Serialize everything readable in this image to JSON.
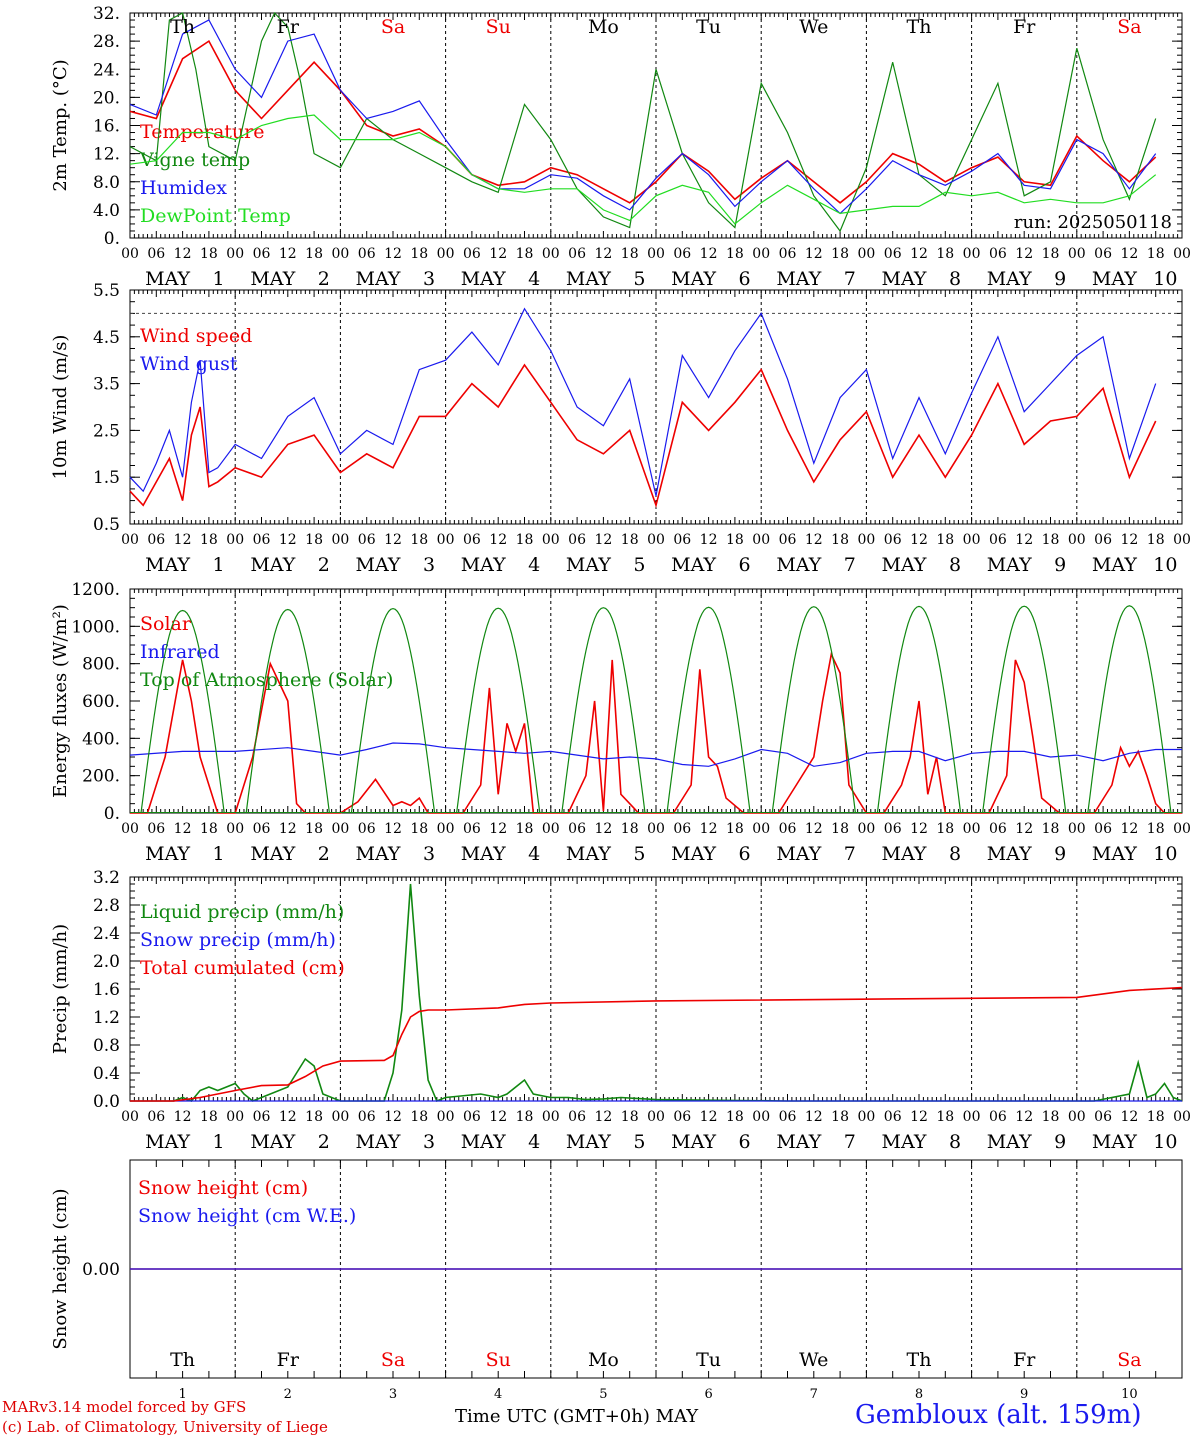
{
  "days": {
    "dates": [
      "1",
      "2",
      "3",
      "4",
      "5",
      "6",
      "7",
      "8",
      "9",
      "10"
    ],
    "month": "MAY",
    "weekdays": [
      "Th",
      "Fr",
      "Sa",
      "Su",
      "Mo",
      "Tu",
      "We",
      "Th",
      "Fr",
      "Sa"
    ],
    "weekend_flags": [
      false,
      false,
      true,
      true,
      false,
      false,
      false,
      false,
      false,
      true
    ],
    "hour_ticks": [
      "00",
      "06",
      "12",
      "18"
    ]
  },
  "colors": {
    "red": "#ee0000",
    "green": "#118811",
    "blue": "#1a1aee",
    "lightgreen": "#22dd22",
    "weekend": "#ee1111"
  },
  "footer": {
    "model": "MARv3.14 model forced by GFS",
    "credit": "(c) Lab. of Climatology, University of Liege",
    "time_label": "Time UTC (GMT+0h)",
    "time_month": "MAY",
    "station": "Gembloux (alt. 159m)"
  },
  "chart_data": [
    {
      "type": "line",
      "ylabel": "2m Temp. (°C)",
      "ylim": [
        0,
        32
      ],
      "yticks": [
        "0.",
        "4.0",
        "8.0",
        "12.",
        "16.",
        "20.",
        "24.",
        "28.",
        "32."
      ],
      "annotation": "run: 2025050118",
      "x_unit": "hours since 00 UTC MAY 1",
      "series": [
        {
          "name": "Temperature",
          "color": "red",
          "x": [
            0,
            6,
            12,
            18,
            24,
            30,
            36,
            42,
            48,
            54,
            60,
            66,
            72,
            78,
            84,
            90,
            96,
            102,
            108,
            114,
            120,
            126,
            132,
            138,
            144,
            150,
            156,
            162,
            168,
            174,
            180,
            186,
            192,
            198,
            204,
            210,
            216,
            222,
            228,
            234
          ],
          "values": [
            18,
            17,
            25.5,
            28,
            21,
            17,
            21,
            25,
            21,
            16,
            14.5,
            15.5,
            13,
            9,
            7.5,
            8,
            10,
            9,
            7,
            5,
            8,
            12,
            9.5,
            5.5,
            8.5,
            11,
            8,
            5,
            8,
            12,
            10.5,
            8,
            10,
            11.5,
            8,
            7.5,
            14.5,
            11,
            8,
            11.5
          ]
        },
        {
          "name": "Vigne temp",
          "color": "green",
          "x": [
            0,
            6,
            9,
            12,
            15,
            18,
            24,
            30,
            33,
            36,
            39,
            42,
            48,
            54,
            60,
            66,
            72,
            78,
            84,
            90,
            96,
            102,
            108,
            114,
            120,
            126,
            132,
            138,
            144,
            150,
            156,
            162,
            168,
            174,
            180,
            186,
            192,
            198,
            204,
            210,
            216,
            222,
            228,
            234
          ],
          "values": [
            13,
            11,
            31,
            32,
            24,
            13,
            11,
            28,
            32,
            30,
            22,
            12,
            10,
            17,
            14,
            12,
            10,
            8,
            6.5,
            19,
            14,
            7,
            3,
            1.5,
            24,
            12,
            5,
            1.5,
            22,
            15,
            6,
            1,
            10,
            25,
            9,
            6,
            14,
            22,
            6,
            8,
            27,
            14,
            5.5,
            17
          ]
        },
        {
          "name": "Humidex",
          "color": "blue",
          "x": [
            0,
            6,
            12,
            18,
            24,
            30,
            36,
            42,
            48,
            54,
            60,
            66,
            72,
            78,
            84,
            90,
            96,
            102,
            108,
            114,
            120,
            126,
            132,
            138,
            144,
            150,
            156,
            162,
            168,
            174,
            180,
            186,
            192,
            198,
            204,
            210,
            216,
            222,
            228,
            234
          ],
          "values": [
            19,
            17.5,
            29,
            31,
            24,
            20,
            28,
            29,
            21,
            17,
            18,
            19.5,
            14,
            9,
            7,
            7,
            9,
            8.5,
            6,
            4,
            8.5,
            12,
            9,
            4.5,
            8,
            11,
            7,
            3.5,
            7,
            11,
            9,
            7.5,
            9.5,
            12,
            7.5,
            7,
            14,
            12,
            7,
            12
          ]
        },
        {
          "name": "DewPoint Temp",
          "color": "lightgreen",
          "x": [
            0,
            6,
            12,
            18,
            24,
            30,
            36,
            42,
            48,
            54,
            60,
            66,
            72,
            78,
            84,
            90,
            96,
            102,
            108,
            114,
            120,
            126,
            132,
            138,
            144,
            150,
            156,
            162,
            168,
            174,
            180,
            186,
            192,
            198,
            204,
            210,
            216,
            222,
            228,
            234
          ],
          "values": [
            10.5,
            11,
            15,
            15,
            14,
            16,
            17,
            17.5,
            14,
            14,
            14,
            15,
            13,
            9,
            7,
            6.5,
            7,
            7,
            4,
            2.5,
            6,
            7.5,
            6.5,
            2,
            5,
            7.5,
            5.5,
            3.5,
            4,
            4.5,
            4.5,
            6.5,
            6,
            6.5,
            5,
            5.5,
            5,
            5,
            6,
            9
          ]
        }
      ]
    },
    {
      "type": "line",
      "ylabel": "10m Wind (m/s)",
      "ylim": [
        0.5,
        5.5
      ],
      "yticks": [
        "0.5",
        "1.5",
        "2.5",
        "3.5",
        "4.5",
        "5.5"
      ],
      "reference_line": 5.0,
      "x_unit": "hours since 00 UTC MAY 1",
      "series": [
        {
          "name": "Wind speed",
          "color": "red",
          "x": [
            0,
            3,
            6,
            9,
            12,
            14,
            16,
            18,
            20,
            24,
            30,
            36,
            42,
            48,
            54,
            60,
            66,
            72,
            78,
            84,
            90,
            96,
            102,
            108,
            114,
            120,
            126,
            132,
            138,
            144,
            150,
            156,
            162,
            168,
            174,
            180,
            186,
            192,
            198,
            204,
            210,
            216,
            222,
            228,
            234
          ],
          "values": [
            1.2,
            0.9,
            1.4,
            1.9,
            1.0,
            2.4,
            3.0,
            1.3,
            1.4,
            1.7,
            1.5,
            2.2,
            2.4,
            1.6,
            2.0,
            1.7,
            2.8,
            2.8,
            3.5,
            3.0,
            3.9,
            3.1,
            2.3,
            2.0,
            2.5,
            0.9,
            3.1,
            2.5,
            3.1,
            3.8,
            2.5,
            1.4,
            2.3,
            2.9,
            1.5,
            2.4,
            1.5,
            2.4,
            3.5,
            2.2,
            2.7,
            2.8,
            3.4,
            1.5,
            2.7
          ]
        },
        {
          "name": "Wind gust",
          "color": "blue",
          "x": [
            0,
            3,
            6,
            9,
            12,
            14,
            16,
            18,
            20,
            24,
            30,
            36,
            42,
            48,
            54,
            60,
            66,
            72,
            78,
            84,
            90,
            96,
            102,
            108,
            114,
            120,
            126,
            132,
            138,
            144,
            150,
            156,
            162,
            168,
            174,
            180,
            186,
            192,
            198,
            204,
            210,
            216,
            222,
            228,
            234
          ],
          "values": [
            1.5,
            1.2,
            1.8,
            2.5,
            1.5,
            3.1,
            4.0,
            1.6,
            1.7,
            2.2,
            1.9,
            2.8,
            3.2,
            2.0,
            2.5,
            2.2,
            3.8,
            4.0,
            4.6,
            3.9,
            5.1,
            4.2,
            3.0,
            2.6,
            3.6,
            1.1,
            4.1,
            3.2,
            4.2,
            5.0,
            3.6,
            1.8,
            3.2,
            3.8,
            1.9,
            3.2,
            2.0,
            3.3,
            4.5,
            2.9,
            3.5,
            4.1,
            4.5,
            1.9,
            3.5
          ]
        }
      ]
    },
    {
      "type": "line",
      "ylabel": "Energy fluxes (W/m²)",
      "ylim": [
        0,
        1200
      ],
      "yticks": [
        "0.",
        "200.",
        "400.",
        "600.",
        "800.",
        "1000.",
        "1200."
      ],
      "x_unit": "hours since 00 UTC MAY 1",
      "series": [
        {
          "name": "Solar",
          "color": "red",
          "x": [
            0,
            4,
            8,
            12,
            14,
            16,
            20,
            24,
            28,
            32,
            36,
            38,
            40,
            44,
            48,
            52,
            56,
            60,
            62,
            64,
            66,
            68,
            72,
            76,
            80,
            82,
            84,
            86,
            88,
            90,
            92,
            96,
            100,
            104,
            106,
            108,
            110,
            112,
            116,
            120,
            124,
            128,
            130,
            132,
            134,
            136,
            140,
            144,
            148,
            152,
            156,
            158,
            160,
            162,
            164,
            168,
            172,
            176,
            178,
            180,
            182,
            184,
            186,
            192,
            196,
            200,
            202,
            204,
            206,
            208,
            212,
            216,
            220,
            224,
            226,
            228,
            230,
            232,
            234,
            236,
            238,
            240
          ],
          "values": [
            0,
            0,
            300,
            820,
            600,
            300,
            0,
            0,
            300,
            800,
            600,
            50,
            0,
            0,
            0,
            60,
            180,
            40,
            60,
            40,
            80,
            0,
            0,
            0,
            150,
            670,
            100,
            480,
            330,
            480,
            0,
            0,
            0,
            200,
            600,
            10,
            820,
            100,
            0,
            0,
            0,
            150,
            770,
            300,
            250,
            80,
            0,
            0,
            0,
            150,
            300,
            600,
            850,
            750,
            150,
            0,
            0,
            150,
            300,
            600,
            100,
            300,
            0,
            0,
            0,
            200,
            820,
            700,
            400,
            80,
            0,
            0,
            0,
            150,
            350,
            250,
            330,
            200,
            50,
            0,
            0,
            0
          ]
        },
        {
          "name": "Infrared",
          "color": "blue",
          "x": [
            0,
            12,
            24,
            36,
            42,
            48,
            54,
            60,
            66,
            72,
            78,
            84,
            90,
            96,
            102,
            108,
            114,
            120,
            126,
            132,
            138,
            144,
            150,
            156,
            162,
            168,
            174,
            180,
            186,
            192,
            198,
            204,
            210,
            216,
            222,
            228,
            234,
            240
          ],
          "values": [
            310,
            330,
            330,
            350,
            330,
            310,
            340,
            375,
            370,
            350,
            340,
            330,
            320,
            330,
            310,
            290,
            300,
            290,
            260,
            250,
            290,
            340,
            320,
            250,
            270,
            320,
            330,
            330,
            280,
            320,
            330,
            330,
            300,
            310,
            280,
            320,
            340,
            340
          ]
        },
        {
          "name": "Top of Atmosphere (Solar)",
          "color": "green",
          "x_center": [
            12,
            36,
            60,
            84,
            108,
            132,
            156,
            180,
            204,
            228
          ],
          "peak": [
            1085,
            1090,
            1095,
            1097,
            1100,
            1102,
            1105,
            1107,
            1108,
            1110
          ],
          "half_width_hours": 9.5
        }
      ]
    },
    {
      "type": "line",
      "ylabel": "Precip (mm/h)",
      "ylim": [
        0,
        3.2
      ],
      "yticks": [
        "0.0",
        "0.4",
        "0.8",
        "1.2",
        "1.6",
        "2.0",
        "2.4",
        "2.8",
        "3.2"
      ],
      "x_unit": "hours since 00 UTC MAY 1",
      "series": [
        {
          "name": "Liquid precip (mm/h)",
          "color": "green",
          "x": [
            0,
            10,
            12,
            14,
            16,
            18,
            20,
            22,
            24,
            26,
            28,
            30,
            36,
            40,
            42,
            44,
            48,
            58,
            60,
            62,
            64,
            66,
            68,
            70,
            72,
            80,
            84,
            86,
            90,
            92,
            96,
            100,
            104,
            108,
            112,
            120,
            150,
            200,
            220,
            228,
            230,
            232,
            234,
            236,
            238,
            240
          ],
          "values": [
            0,
            0,
            0.05,
            0,
            0.15,
            0.2,
            0.15,
            0.2,
            0.25,
            0.1,
            0,
            0.05,
            0.2,
            0.6,
            0.5,
            0.1,
            0,
            0,
            0.4,
            1.3,
            3.1,
            1.5,
            0.3,
            0,
            0.05,
            0.1,
            0.05,
            0.1,
            0.3,
            0.1,
            0.05,
            0.05,
            0.02,
            0.03,
            0.05,
            0.02,
            0,
            0,
            0,
            0.1,
            0.55,
            0.05,
            0.1,
            0.25,
            0.05,
            0
          ]
        },
        {
          "name": "Snow precip (mm/h)",
          "color": "blue",
          "x": [
            0,
            240
          ],
          "values": [
            0,
            0
          ]
        },
        {
          "name": "Total cumulated (cm)",
          "color": "red",
          "x": [
            0,
            10,
            16,
            24,
            30,
            36,
            40,
            44,
            48,
            58,
            60,
            62,
            64,
            66,
            68,
            72,
            84,
            90,
            96,
            120,
            216,
            228,
            240
          ],
          "values": [
            0,
            0,
            0.05,
            0.15,
            0.22,
            0.23,
            0.35,
            0.5,
            0.57,
            0.58,
            0.65,
            0.95,
            1.2,
            1.28,
            1.3,
            1.3,
            1.33,
            1.38,
            1.4,
            1.43,
            1.48,
            1.58,
            1.62
          ]
        }
      ]
    },
    {
      "type": "line",
      "ylabel": "Snow height (cm)",
      "yticks": [
        "0.00"
      ],
      "x_unit": "hours since 00 UTC MAY 1",
      "series": [
        {
          "name": "Snow height (cm)",
          "color": "red",
          "x": [
            0,
            240
          ],
          "values": [
            0,
            0
          ]
        },
        {
          "name": "Snow height (cm W.E.)",
          "color": "blue",
          "x": [
            0,
            240
          ],
          "values": [
            0,
            0
          ]
        }
      ]
    }
  ]
}
